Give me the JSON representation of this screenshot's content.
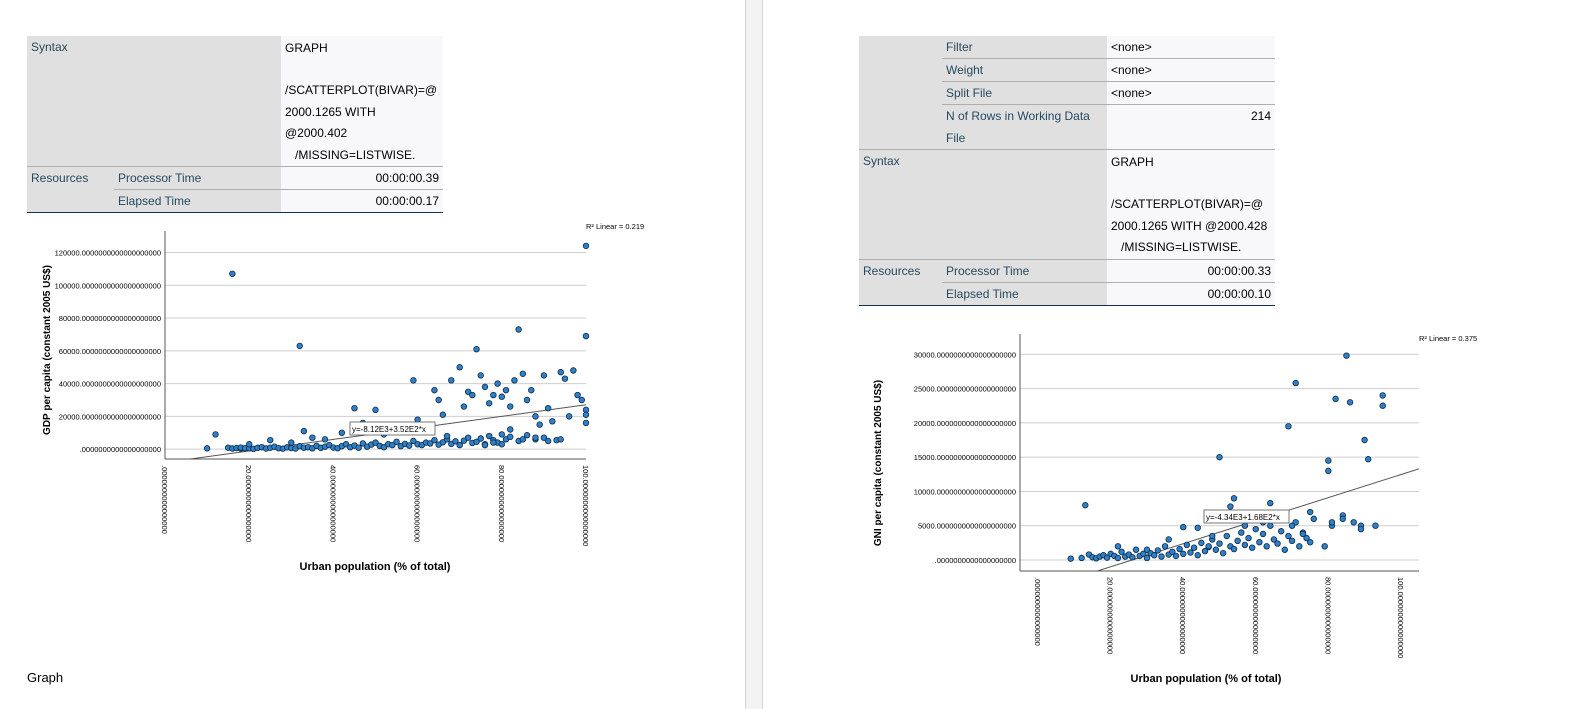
{
  "left": {
    "table": {
      "syntax_label": "Syntax",
      "syntax_lines": [
        "GRAPH",
        "",
        "/SCATTERPLOT(BIVAR)=@",
        "2000.1265 WITH @2000.402",
        "   /MISSING=LISTWISE."
      ],
      "resources_label": "Resources",
      "processor_label": "Processor Time",
      "processor_value": "00:00:00.39",
      "elapsed_label": "Elapsed Time",
      "elapsed_value": "00:00:00.17"
    },
    "section_title": "Graph",
    "chart_data": {
      "type": "scatter",
      "ylabel": "GDP per capita (constant 2005 US$)",
      "xlabel": "Urban population (% of total)",
      "r2_label": "R² Linear = 0.219",
      "fit_label": "y=-8.12E3+3.52E2*x",
      "fit": {
        "intercept": -8120,
        "slope": 352
      },
      "xlim": [
        0,
        100
      ],
      "ylim": [
        -6000,
        127000
      ],
      "x_ticks": [
        0,
        20,
        40,
        60,
        80,
        100
      ],
      "x_tick_labels": [
        ".0000000000000000",
        "20.0000000000000000",
        "40.0000000000000000",
        "60.0000000000000000",
        "80.0000000000000000",
        "100.0000000000000000"
      ],
      "y_ticks": [
        0,
        20000,
        40000,
        60000,
        80000,
        100000,
        120000
      ],
      "y_tick_labels": [
        ".0000000000000000000",
        "20000.0000000000000000000",
        "40000.0000000000000000000",
        "60000.0000000000000000000",
        "80000.0000000000000000000",
        "100000.0000000000000000000",
        "120000.0000000000000000000"
      ],
      "points": [
        [
          10,
          500
        ],
        [
          15,
          900
        ],
        [
          16,
          400
        ],
        [
          17,
          700
        ],
        [
          18,
          300
        ],
        [
          18,
          1000
        ],
        [
          19,
          600
        ],
        [
          20,
          500
        ],
        [
          21,
          200
        ],
        [
          22,
          800
        ],
        [
          23,
          1200
        ],
        [
          24,
          400
        ],
        [
          25,
          900
        ],
        [
          26,
          1500
        ],
        [
          27,
          600
        ],
        [
          28,
          300
        ],
        [
          29,
          1100
        ],
        [
          30,
          700
        ],
        [
          31,
          400
        ],
        [
          32,
          1800
        ],
        [
          33,
          900
        ],
        [
          34,
          1200
        ],
        [
          35,
          500
        ],
        [
          36,
          2000
        ],
        [
          37,
          800
        ],
        [
          38,
          1500
        ],
        [
          39,
          2500
        ],
        [
          40,
          1000
        ],
        [
          41,
          600
        ],
        [
          42,
          1800
        ],
        [
          43,
          3000
        ],
        [
          44,
          1200
        ],
        [
          45,
          2200
        ],
        [
          46,
          900
        ],
        [
          47,
          3500
        ],
        [
          48,
          1500
        ],
        [
          49,
          2800
        ],
        [
          50,
          4000
        ],
        [
          51,
          2000
        ],
        [
          52,
          1200
        ],
        [
          53,
          3000
        ],
        [
          54,
          2500
        ],
        [
          55,
          4500
        ],
        [
          56,
          1800
        ],
        [
          57,
          3200
        ],
        [
          58,
          2200
        ],
        [
          59,
          5000
        ],
        [
          60,
          3000
        ],
        [
          61,
          2500
        ],
        [
          62,
          4000
        ],
        [
          63,
          3500
        ],
        [
          64,
          5500
        ],
        [
          65,
          2800
        ],
        [
          66,
          4200
        ],
        [
          67,
          6000
        ],
        [
          68,
          3200
        ],
        [
          69,
          4800
        ],
        [
          70,
          2500
        ],
        [
          71,
          5200
        ],
        [
          72,
          7000
        ],
        [
          73,
          3800
        ],
        [
          74,
          4500
        ],
        [
          75,
          6500
        ],
        [
          76,
          3000
        ],
        [
          77,
          8000
        ],
        [
          78,
          5500
        ],
        [
          79,
          4000
        ],
        [
          80,
          9000
        ],
        [
          81,
          6000
        ],
        [
          82,
          7500
        ],
        [
          84,
          5000
        ],
        [
          86,
          8500
        ],
        [
          88,
          6000
        ],
        [
          90,
          7000
        ],
        [
          12,
          9000
        ],
        [
          20,
          3000
        ],
        [
          25,
          5500
        ],
        [
          30,
          4000
        ],
        [
          33,
          11000
        ],
        [
          35,
          7000
        ],
        [
          38,
          6000
        ],
        [
          42,
          10000
        ],
        [
          45,
          25000
        ],
        [
          47,
          16000
        ],
        [
          50,
          24000
        ],
        [
          52,
          9000
        ],
        [
          55,
          14000
        ],
        [
          58,
          13000
        ],
        [
          59,
          42000
        ],
        [
          60,
          18000
        ],
        [
          62,
          12000
        ],
        [
          64,
          36000
        ],
        [
          65,
          30000
        ],
        [
          66,
          21000
        ],
        [
          67,
          8000
        ],
        [
          68,
          42000
        ],
        [
          70,
          50000
        ],
        [
          71,
          26000
        ],
        [
          72,
          35000
        ],
        [
          73,
          33000
        ],
        [
          74,
          61000
        ],
        [
          75,
          45000
        ],
        [
          76,
          38000
        ],
        [
          77,
          28000
        ],
        [
          78,
          33000
        ],
        [
          79,
          40000
        ],
        [
          80,
          32000
        ],
        [
          81,
          36000
        ],
        [
          82,
          26000
        ],
        [
          83,
          42000
        ],
        [
          84,
          73000
        ],
        [
          85,
          46000
        ],
        [
          86,
          30000
        ],
        [
          87,
          36000
        ],
        [
          88,
          20000
        ],
        [
          89,
          15000
        ],
        [
          90,
          45000
        ],
        [
          91,
          25000
        ],
        [
          92,
          17000
        ],
        [
          93,
          5500
        ],
        [
          94,
          47000
        ],
        [
          95,
          43000
        ],
        [
          96,
          20000
        ],
        [
          97,
          48000
        ],
        [
          98,
          33000
        ],
        [
          99,
          30000
        ],
        [
          100,
          124000
        ],
        [
          100,
          69000
        ],
        [
          100,
          24000
        ],
        [
          100,
          21000
        ],
        [
          100,
          16000
        ],
        [
          16,
          107000
        ],
        [
          32,
          63000
        ],
        [
          82,
          12000
        ],
        [
          85,
          6000
        ],
        [
          88,
          7000
        ],
        [
          91,
          5000
        ],
        [
          94,
          6000
        ],
        [
          76,
          2500
        ],
        [
          78,
          4000
        ],
        [
          80,
          3000
        ]
      ]
    }
  },
  "right": {
    "table": {
      "filter_label": "Filter",
      "filter_value": "<none>",
      "weight_label": "Weight",
      "weight_value": "<none>",
      "split_label": "Split File",
      "split_value": "<none>",
      "nrows_label_1": "N of Rows in Working Data",
      "nrows_label_2": "File",
      "nrows_value": "214",
      "syntax_label": "Syntax",
      "syntax_lines": [
        "GRAPH",
        "",
        "/SCATTERPLOT(BIVAR)=@",
        "2000.1265 WITH @2000.428",
        "   /MISSING=LISTWISE."
      ],
      "resources_label": "Resources",
      "processor_label": "Processor Time",
      "processor_value": "00:00:00.33",
      "elapsed_label": "Elapsed Time",
      "elapsed_value": "00:00:00.10"
    },
    "chart_data": {
      "type": "scatter",
      "ylabel": "GNI per capita (constant 2005 US$)",
      "xlabel": "Urban population (% of total)",
      "r2_label": "R² Linear = 0.375",
      "fit_label": "y=-4.34E3+1.68E2*x",
      "fit": {
        "intercept": -4340,
        "slope": 168
      },
      "xlim": [
        -5,
        105
      ],
      "ylim": [
        -1600,
        31500
      ],
      "x_ticks": [
        0,
        20,
        40,
        60,
        80,
        100
      ],
      "x_tick_labels": [
        ".0000000000000000",
        "20.0000000000000000",
        "40.0000000000000000",
        "60.0000000000000000",
        "80.0000000000000000",
        "100.0000000000000000"
      ],
      "y_ticks": [
        0,
        5000,
        10000,
        15000,
        20000,
        25000,
        30000
      ],
      "y_tick_labels": [
        ".0000000000000000000",
        "5000.0000000000000000000",
        "10000.0000000000000000000",
        "15000.0000000000000000000",
        "20000.0000000000000000000",
        "25000.0000000000000000000",
        "30000.0000000000000000000"
      ],
      "points": [
        [
          9,
          200
        ],
        [
          12,
          300
        ],
        [
          14,
          800
        ],
        [
          15,
          400
        ],
        [
          16,
          250
        ],
        [
          17,
          500
        ],
        [
          18,
          700
        ],
        [
          19,
          350
        ],
        [
          20,
          900
        ],
        [
          21,
          600
        ],
        [
          22,
          300
        ],
        [
          23,
          1200
        ],
        [
          24,
          500
        ],
        [
          25,
          800
        ],
        [
          26,
          400
        ],
        [
          27,
          1500
        ],
        [
          28,
          600
        ],
        [
          29,
          900
        ],
        [
          30,
          300
        ],
        [
          31,
          1000
        ],
        [
          32,
          700
        ],
        [
          33,
          1400
        ],
        [
          34,
          500
        ],
        [
          35,
          2000
        ],
        [
          36,
          800
        ],
        [
          37,
          1200
        ],
        [
          38,
          600
        ],
        [
          39,
          1600
        ],
        [
          40,
          900
        ],
        [
          41,
          2200
        ],
        [
          42,
          1100
        ],
        [
          43,
          1800
        ],
        [
          44,
          700
        ],
        [
          45,
          2500
        ],
        [
          46,
          1300
        ],
        [
          47,
          1900
        ],
        [
          48,
          3000
        ],
        [
          49,
          1500
        ],
        [
          50,
          2400
        ],
        [
          51,
          1000
        ],
        [
          52,
          3500
        ],
        [
          53,
          2000
        ],
        [
          54,
          1600
        ],
        [
          55,
          2800
        ],
        [
          56,
          4000
        ],
        [
          57,
          2200
        ],
        [
          58,
          3200
        ],
        [
          59,
          1800
        ],
        [
          60,
          4500
        ],
        [
          61,
          2600
        ],
        [
          62,
          3800
        ],
        [
          63,
          2000
        ],
        [
          64,
          5000
        ],
        [
          65,
          3000
        ],
        [
          66,
          2400
        ],
        [
          67,
          4200
        ],
        [
          68,
          1500
        ],
        [
          69,
          3500
        ],
        [
          70,
          2800
        ],
        [
          71,
          5500
        ],
        [
          72,
          2000
        ],
        [
          73,
          4000
        ],
        [
          74,
          3200
        ],
        [
          75,
          2600
        ],
        [
          76,
          6000
        ],
        [
          13,
          8000
        ],
        [
          22,
          2000
        ],
        [
          30,
          1500
        ],
        [
          36,
          3000
        ],
        [
          40,
          4800
        ],
        [
          44,
          4700
        ],
        [
          48,
          3500
        ],
        [
          50,
          15000
        ],
        [
          53,
          7800
        ],
        [
          54,
          9000
        ],
        [
          57,
          5000
        ],
        [
          60,
          6500
        ],
        [
          62,
          5500
        ],
        [
          64,
          8300
        ],
        [
          66,
          6800
        ],
        [
          69,
          19500
        ],
        [
          71,
          25800
        ],
        [
          73,
          3800
        ],
        [
          75,
          7000
        ],
        [
          79,
          2000
        ],
        [
          80,
          14500
        ],
        [
          80,
          13000
        ],
        [
          81,
          5000
        ],
        [
          82,
          23500
        ],
        [
          84,
          6500
        ],
        [
          85,
          29800
        ],
        [
          86,
          23000
        ],
        [
          87,
          5500
        ],
        [
          89,
          5000
        ],
        [
          90,
          17500
        ],
        [
          91,
          14700
        ],
        [
          93,
          5000
        ],
        [
          95,
          24000
        ],
        [
          95,
          22500
        ],
        [
          84,
          6000
        ],
        [
          89,
          4500
        ],
        [
          70,
          5000
        ],
        [
          58,
          6800
        ],
        [
          47,
          2000
        ],
        [
          81,
          5500
        ]
      ]
    }
  }
}
